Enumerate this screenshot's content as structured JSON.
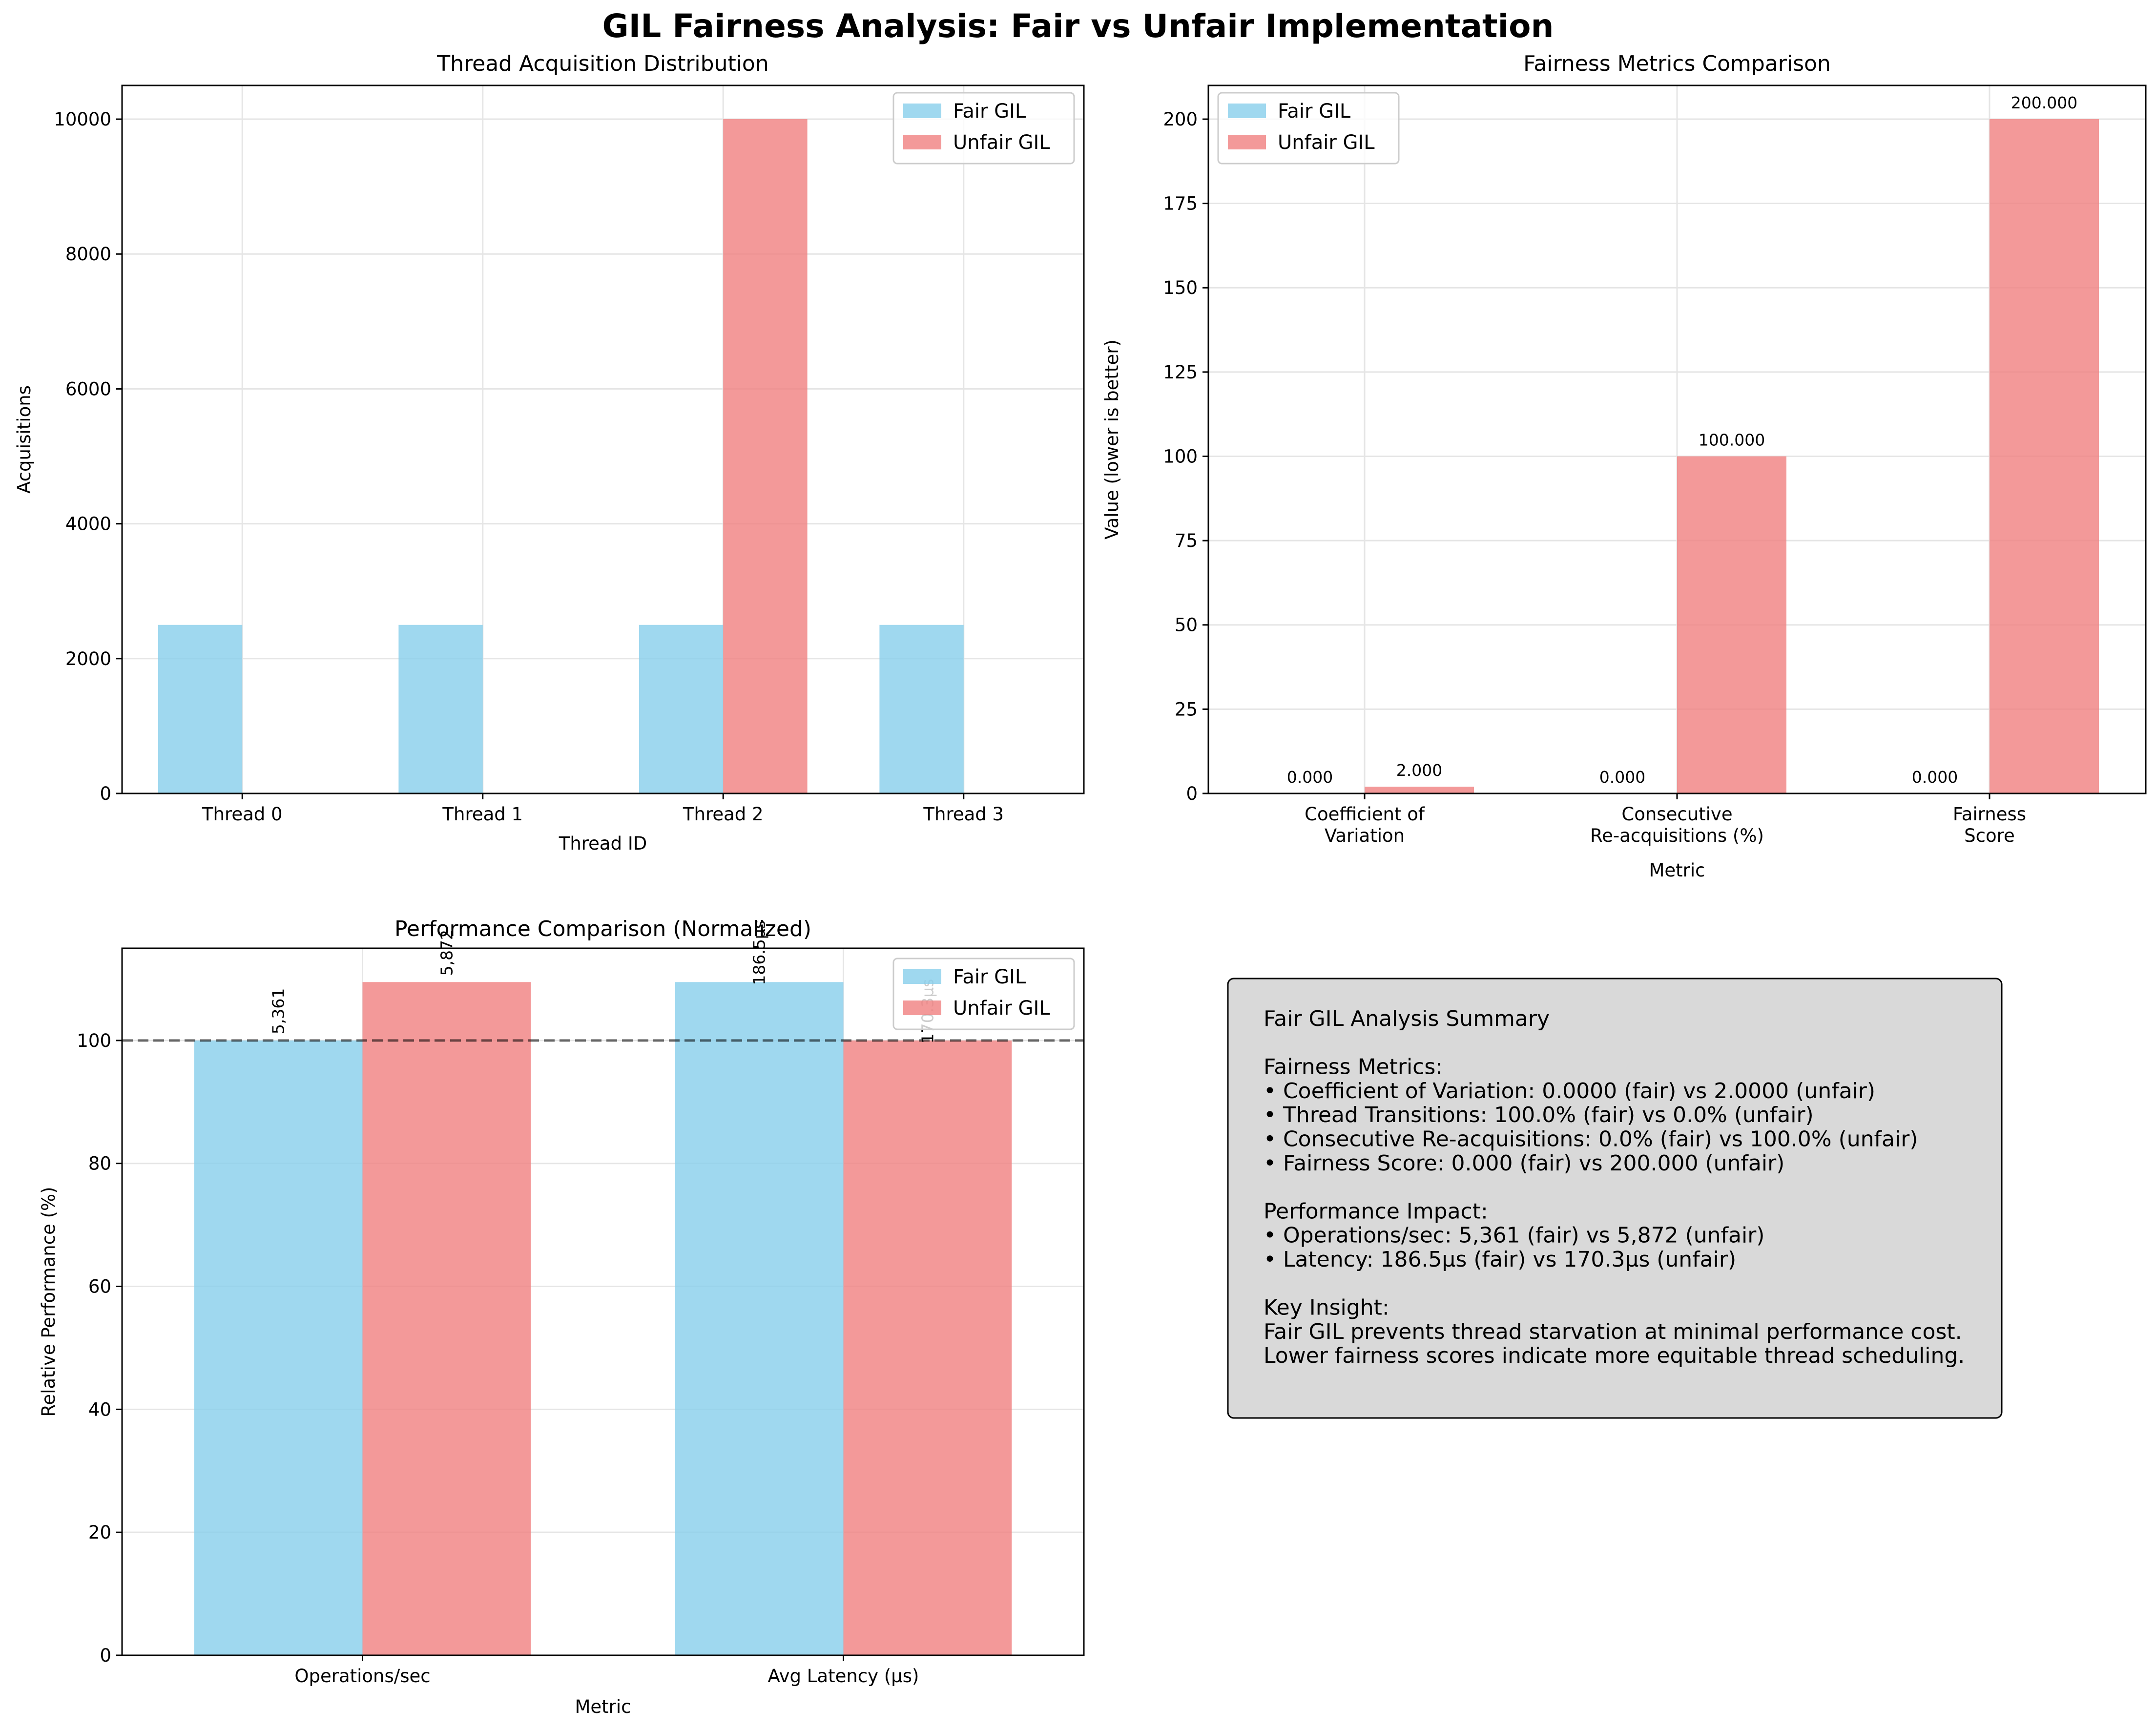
{
  "figure": {
    "title": "GIL Fairness Analysis: Fair vs Unfair Implementation",
    "colors": {
      "fair": "#87CEEB",
      "unfair": "#F08080",
      "grid": "#e5e5e5",
      "summary_bg": "#d9d9d9"
    }
  },
  "chart_data": [
    {
      "type": "bar",
      "title": "Thread Acquisition Distribution",
      "xlabel": "Thread ID",
      "ylabel": "Acquisitions",
      "categories": [
        "Thread 0",
        "Thread 1",
        "Thread 2",
        "Thread 3"
      ],
      "series": [
        {
          "name": "Fair GIL",
          "values": [
            2500,
            2500,
            2500,
            2500
          ]
        },
        {
          "name": "Unfair GIL",
          "values": [
            0,
            0,
            10000,
            0
          ]
        }
      ],
      "ylim": [
        0,
        10500
      ],
      "yticks": [
        0,
        2000,
        4000,
        6000,
        8000,
        10000
      ],
      "grid": true,
      "legend": "top-right"
    },
    {
      "type": "bar",
      "title": "Fairness Metrics Comparison",
      "xlabel": "Metric",
      "ylabel": "Value (lower is better)",
      "categories": [
        [
          "Coefficient of",
          "Variation"
        ],
        [
          "Consecutive",
          "Re-acquisitions (%)"
        ],
        [
          "Fairness",
          "Score"
        ]
      ],
      "series": [
        {
          "name": "Fair GIL",
          "values": [
            0.0,
            0.0,
            0.0
          ],
          "labels": [
            "0.000",
            "0.000",
            "0.000"
          ]
        },
        {
          "name": "Unfair GIL",
          "values": [
            2.0,
            100.0,
            200.0
          ],
          "labels": [
            "2.000",
            "100.000",
            "200.000"
          ]
        }
      ],
      "ylim": [
        0,
        210
      ],
      "yticks": [
        0,
        25,
        50,
        75,
        100,
        125,
        150,
        175,
        200
      ],
      "grid": true,
      "legend": "top-left"
    },
    {
      "type": "bar",
      "title": "Performance Comparison (Normalized)",
      "xlabel": "Metric",
      "ylabel": "Relative Performance (%)",
      "categories": [
        "Operations/sec",
        "Avg Latency (μs)"
      ],
      "series": [
        {
          "name": "Fair GIL",
          "values": [
            100.0,
            109.5
          ],
          "labels": [
            "5,361",
            "186.5μs"
          ]
        },
        {
          "name": "Unfair GIL",
          "values": [
            109.5,
            100.0
          ],
          "labels": [
            "5,872",
            "170.3μs"
          ]
        }
      ],
      "ylim": [
        0,
        115
      ],
      "yticks": [
        0,
        20,
        40,
        60,
        80,
        100
      ],
      "reference_line": 100,
      "grid": true,
      "legend": "top-right"
    }
  ],
  "summary": {
    "lines": [
      "Fair GIL Analysis Summary",
      "",
      "Fairness Metrics:",
      "• Coefficient of Variation: 0.0000 (fair) vs 2.0000 (unfair)",
      "• Thread Transitions: 100.0% (fair) vs 0.0% (unfair)",
      "• Consecutive Re-acquisitions: 0.0% (fair) vs 100.0% (unfair)",
      "• Fairness Score: 0.000 (fair) vs 200.000 (unfair)",
      "",
      "Performance Impact:",
      "• Operations/sec: 5,361 (fair) vs 5,872 (unfair)",
      "• Latency: 186.5μs (fair) vs 170.3μs (unfair)",
      "",
      "Key Insight:",
      "Fair GIL prevents thread starvation at minimal performance cost.",
      "Lower fairness scores indicate more equitable thread scheduling."
    ]
  }
}
